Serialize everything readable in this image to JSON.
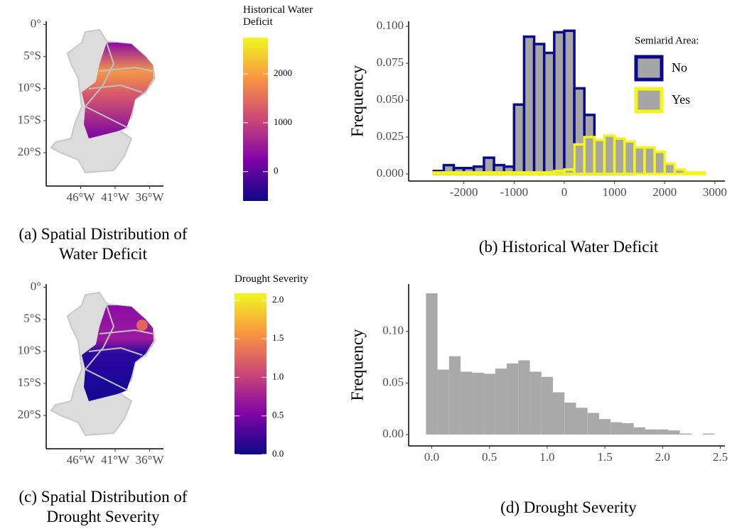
{
  "chart_data": [
    {
      "type": "map",
      "caption": "(a) Spatial Distribution of Water Deficit",
      "xlim": [
        -51,
        -34
      ],
      "xticks": [
        {
          "value": -46,
          "label": "46°W"
        },
        {
          "value": -41,
          "label": "41°W"
        },
        {
          "value": -36,
          "label": "36°W"
        }
      ],
      "ylim": [
        -25.2,
        0.5
      ],
      "yticks": [
        {
          "value": 0,
          "label": "0°"
        },
        {
          "value": -5,
          "label": "5°S"
        },
        {
          "value": -10,
          "label": "10°S"
        },
        {
          "value": -15,
          "label": "15°S"
        },
        {
          "value": -20,
          "label": "20°S"
        }
      ],
      "colorbar": {
        "title": "Historical Water Deficit",
        "lim": [
          -600,
          2740
        ],
        "ticks": [
          0,
          1000,
          2000
        ],
        "colors": [
          "#0d0887",
          "#7e03a8",
          "#cc4778",
          "#f89540",
          "#f0f921"
        ]
      }
    },
    {
      "type": "histogram",
      "caption": "(b) Historical Water Deficit",
      "y_label": "Frequency",
      "bins": [
        -2600,
        -2400,
        -2200,
        -2000,
        -1800,
        -1600,
        -1400,
        -1200,
        -1000,
        -800,
        -600,
        -400,
        -200,
        0,
        200,
        400,
        600,
        800,
        1000,
        1200,
        1400,
        1600,
        1800,
        2000,
        2200,
        2400,
        2600,
        2800
      ],
      "fill": "#a6a6a6",
      "series": [
        {
          "name": "No",
          "color": "#0a0a8a",
          "values": [
            0.002,
            0.006,
            0.004,
            0.004,
            0.005,
            0.011,
            0.006,
            0.005,
            0.047,
            0.093,
            0.088,
            0.082,
            0.096,
            0.097,
            0.058,
            0.04,
            0.014,
            0.01,
            0.005,
            0.001,
            0,
            0,
            0,
            0,
            0,
            0,
            0
          ]
        },
        {
          "name": "Yes",
          "color": "#f5f51a",
          "values": [
            0.001,
            0.001,
            0.001,
            0.001,
            0.001,
            0.001,
            0.001,
            0.001,
            0.001,
            0.001,
            0.001,
            0.001,
            0.002,
            0.003,
            0.02,
            0.025,
            0.023,
            0.026,
            0.024,
            0.022,
            0.018,
            0.018,
            0.015,
            0.007,
            0.003,
            0.001,
            0.001
          ]
        }
      ],
      "legend_title": "Semiarid Area:",
      "legend": "top-right",
      "xlim": [
        -3100,
        3200
      ],
      "xticks": [
        -2000,
        -1000,
        0,
        1000,
        2000,
        3000
      ],
      "ylim": [
        -0.0048,
        0.1034
      ],
      "yticks": [
        {
          "value": 0,
          "label": "0.000"
        },
        {
          "value": 0.025,
          "label": "0.025"
        },
        {
          "value": 0.05,
          "label": "0.050"
        },
        {
          "value": 0.075,
          "label": "0.075"
        },
        {
          "value": 0.1,
          "label": "0.100"
        }
      ]
    },
    {
      "type": "map",
      "caption": "(c) Spatial Distribution of Drought Severity",
      "xlim": [
        -51,
        -34
      ],
      "xticks": [
        {
          "value": -46,
          "label": "46°W"
        },
        {
          "value": -41,
          "label": "41°W"
        },
        {
          "value": -36,
          "label": "36°W"
        }
      ],
      "ylim": [
        -25.2,
        0.5
      ],
      "yticks": [
        {
          "value": 0,
          "label": "0°"
        },
        {
          "value": -5,
          "label": "5°S"
        },
        {
          "value": -10,
          "label": "10°S"
        },
        {
          "value": -15,
          "label": "15°S"
        },
        {
          "value": -20,
          "label": "20°S"
        }
      ],
      "colorbar": {
        "title": "Drought Severity",
        "lim": [
          0,
          2.09
        ],
        "ticks": [
          {
            "value": 0,
            "label": "0.0"
          },
          {
            "value": 0.5,
            "label": "0.5"
          },
          {
            "value": 1,
            "label": "1.0"
          },
          {
            "value": 1.5,
            "label": "1.5"
          },
          {
            "value": 2,
            "label": "2.0"
          }
        ],
        "colors": [
          "#0d0887",
          "#7e03a8",
          "#cc4778",
          "#f89540",
          "#f0f921"
        ]
      }
    },
    {
      "type": "histogram",
      "caption": "(d) Drought Severity",
      "y_label": "Frequency",
      "bins": [
        -0.05,
        0.05,
        0.15,
        0.25,
        0.35,
        0.45,
        0.55,
        0.65,
        0.75,
        0.85,
        0.95,
        1.05,
        1.15,
        1.25,
        1.35,
        1.45,
        1.55,
        1.65,
        1.75,
        1.85,
        1.95,
        2.05,
        2.15,
        2.25,
        2.35,
        2.45
      ],
      "values": [
        0.137,
        0.063,
        0.076,
        0.061,
        0.06,
        0.059,
        0.064,
        0.069,
        0.072,
        0.061,
        0.056,
        0.041,
        0.031,
        0.026,
        0.021,
        0.015,
        0.012,
        0.011,
        0.007,
        0.005,
        0.005,
        0.004,
        0.001,
        0,
        0.001
      ],
      "color": "#a9a9a9",
      "xlim": [
        -0.2,
        2.54
      ],
      "xticks": [
        {
          "value": 0,
          "label": "0.0"
        },
        {
          "value": 0.5,
          "label": "0.5"
        },
        {
          "value": 1,
          "label": "1.0"
        },
        {
          "value": 1.5,
          "label": "1.5"
        },
        {
          "value": 2,
          "label": "2.0"
        },
        {
          "value": 2.5,
          "label": "2.5"
        }
      ],
      "ylim": [
        -0.011,
        0.146
      ],
      "yticks": [
        {
          "value": 0,
          "label": "0.00"
        },
        {
          "value": 0.05,
          "label": "0.05"
        },
        {
          "value": 0.1,
          "label": "0.10"
        }
      ]
    }
  ]
}
